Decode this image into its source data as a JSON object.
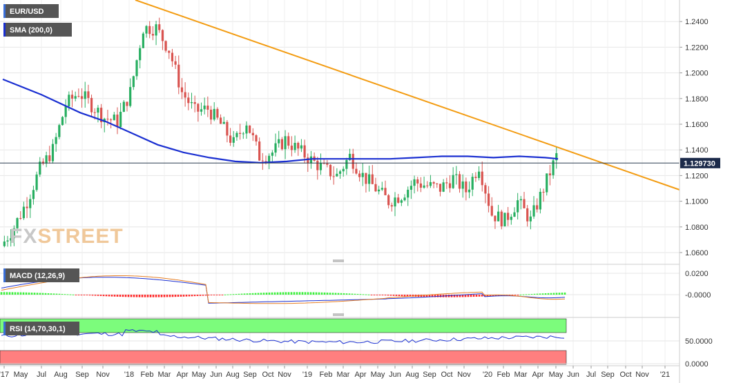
{
  "chart_data": [
    {
      "type": "candlestick",
      "symbol": "EUR/USD",
      "overlay_label": "SMA (200,0)",
      "current_price_label": "1.129730",
      "current_price": 1.12973,
      "ylim": [
        1.055,
        1.255
      ],
      "yticks": [
        "1.0600",
        "1.0800",
        "1.1000",
        "1.1200",
        "1.1400",
        "1.1600",
        "1.1800",
        "1.2000",
        "1.2200",
        "1.2400"
      ],
      "x_tick_labels": [
        "'17",
        "May",
        "Jul",
        "Aug",
        "Sep",
        "Nov",
        "'18",
        "Feb",
        "Mar",
        "Apr",
        "May",
        "Jun",
        "Aug",
        "Sep",
        "Oct",
        "Nov",
        "'19",
        "Feb",
        "Mar",
        "Apr",
        "May",
        "Jun",
        "Aug",
        "Sep",
        "Oct",
        "Nov",
        "'20",
        "Feb",
        "Mar",
        "Apr",
        "May",
        "Jun",
        "Jul",
        "Sep",
        "Oct",
        "Nov",
        "'21"
      ],
      "watermark": {
        "part1": "FX",
        "part2": "STREET"
      },
      "trendline": {
        "from": [
          0,
          1.259
        ],
        "to": [
          51,
          1.108
        ],
        "color": "#f39c12"
      },
      "sma_color": "#1a2fd1",
      "up_color": "#27ae60",
      "down_color": "#d9534f",
      "sma_200": [
        [
          0,
          1.195
        ],
        [
          3,
          1.183
        ],
        [
          6,
          1.169
        ],
        [
          8,
          1.162
        ],
        [
          10,
          1.153
        ],
        [
          12,
          1.144
        ],
        [
          14,
          1.138
        ],
        [
          16,
          1.134
        ],
        [
          18,
          1.131
        ],
        [
          20,
          1.13
        ],
        [
          22,
          1.131
        ],
        [
          24,
          1.133
        ],
        [
          26,
          1.133
        ],
        [
          28,
          1.133
        ],
        [
          30,
          1.133
        ],
        [
          32,
          1.134
        ],
        [
          34,
          1.135
        ],
        [
          36,
          1.135
        ],
        [
          38,
          1.134
        ],
        [
          40,
          1.135
        ],
        [
          42,
          1.134
        ],
        [
          43,
          1.133
        ]
      ],
      "price_path": [
        [
          0,
          1.065
        ],
        [
          1,
          1.08
        ],
        [
          2,
          1.1
        ],
        [
          3,
          1.125
        ],
        [
          4,
          1.14
        ],
        [
          5,
          1.175
        ],
        [
          6,
          1.185
        ],
        [
          7,
          1.175
        ],
        [
          8,
          1.165
        ],
        [
          9,
          1.162
        ],
        [
          10,
          1.185
        ],
        [
          11,
          1.235
        ],
        [
          12,
          1.235
        ],
        [
          13,
          1.218
        ],
        [
          14,
          1.185
        ],
        [
          15,
          1.17
        ],
        [
          16,
          1.172
        ],
        [
          17,
          1.16
        ],
        [
          18,
          1.145
        ],
        [
          19,
          1.162
        ],
        [
          20,
          1.135
        ],
        [
          21,
          1.138
        ],
        [
          22,
          1.148
        ],
        [
          23,
          1.14
        ],
        [
          24,
          1.132
        ],
        [
          25,
          1.125
        ],
        [
          26,
          1.12
        ],
        [
          27,
          1.135
        ],
        [
          28,
          1.12
        ],
        [
          29,
          1.11
        ],
        [
          30,
          1.1
        ],
        [
          31,
          1.105
        ],
        [
          32,
          1.115
        ],
        [
          33,
          1.112
        ],
        [
          34,
          1.11
        ],
        [
          35,
          1.118
        ],
        [
          36,
          1.108
        ],
        [
          37,
          1.128
        ],
        [
          38,
          1.09
        ],
        [
          39,
          1.085
        ],
        [
          40,
          1.1
        ],
        [
          41,
          1.085
        ],
        [
          42,
          1.11
        ],
        [
          43,
          1.135
        ]
      ]
    },
    {
      "type": "line",
      "label": "MACD (12,26,9)",
      "yticks": [
        "0.0200",
        "-0.0000"
      ],
      "ylim": [
        -0.015,
        0.03
      ]
    },
    {
      "type": "line",
      "label": "RSI (14,70,30,1)",
      "yticks": [
        "50.0000",
        "0.0000"
      ],
      "ylim": [
        0,
        100
      ]
    }
  ]
}
